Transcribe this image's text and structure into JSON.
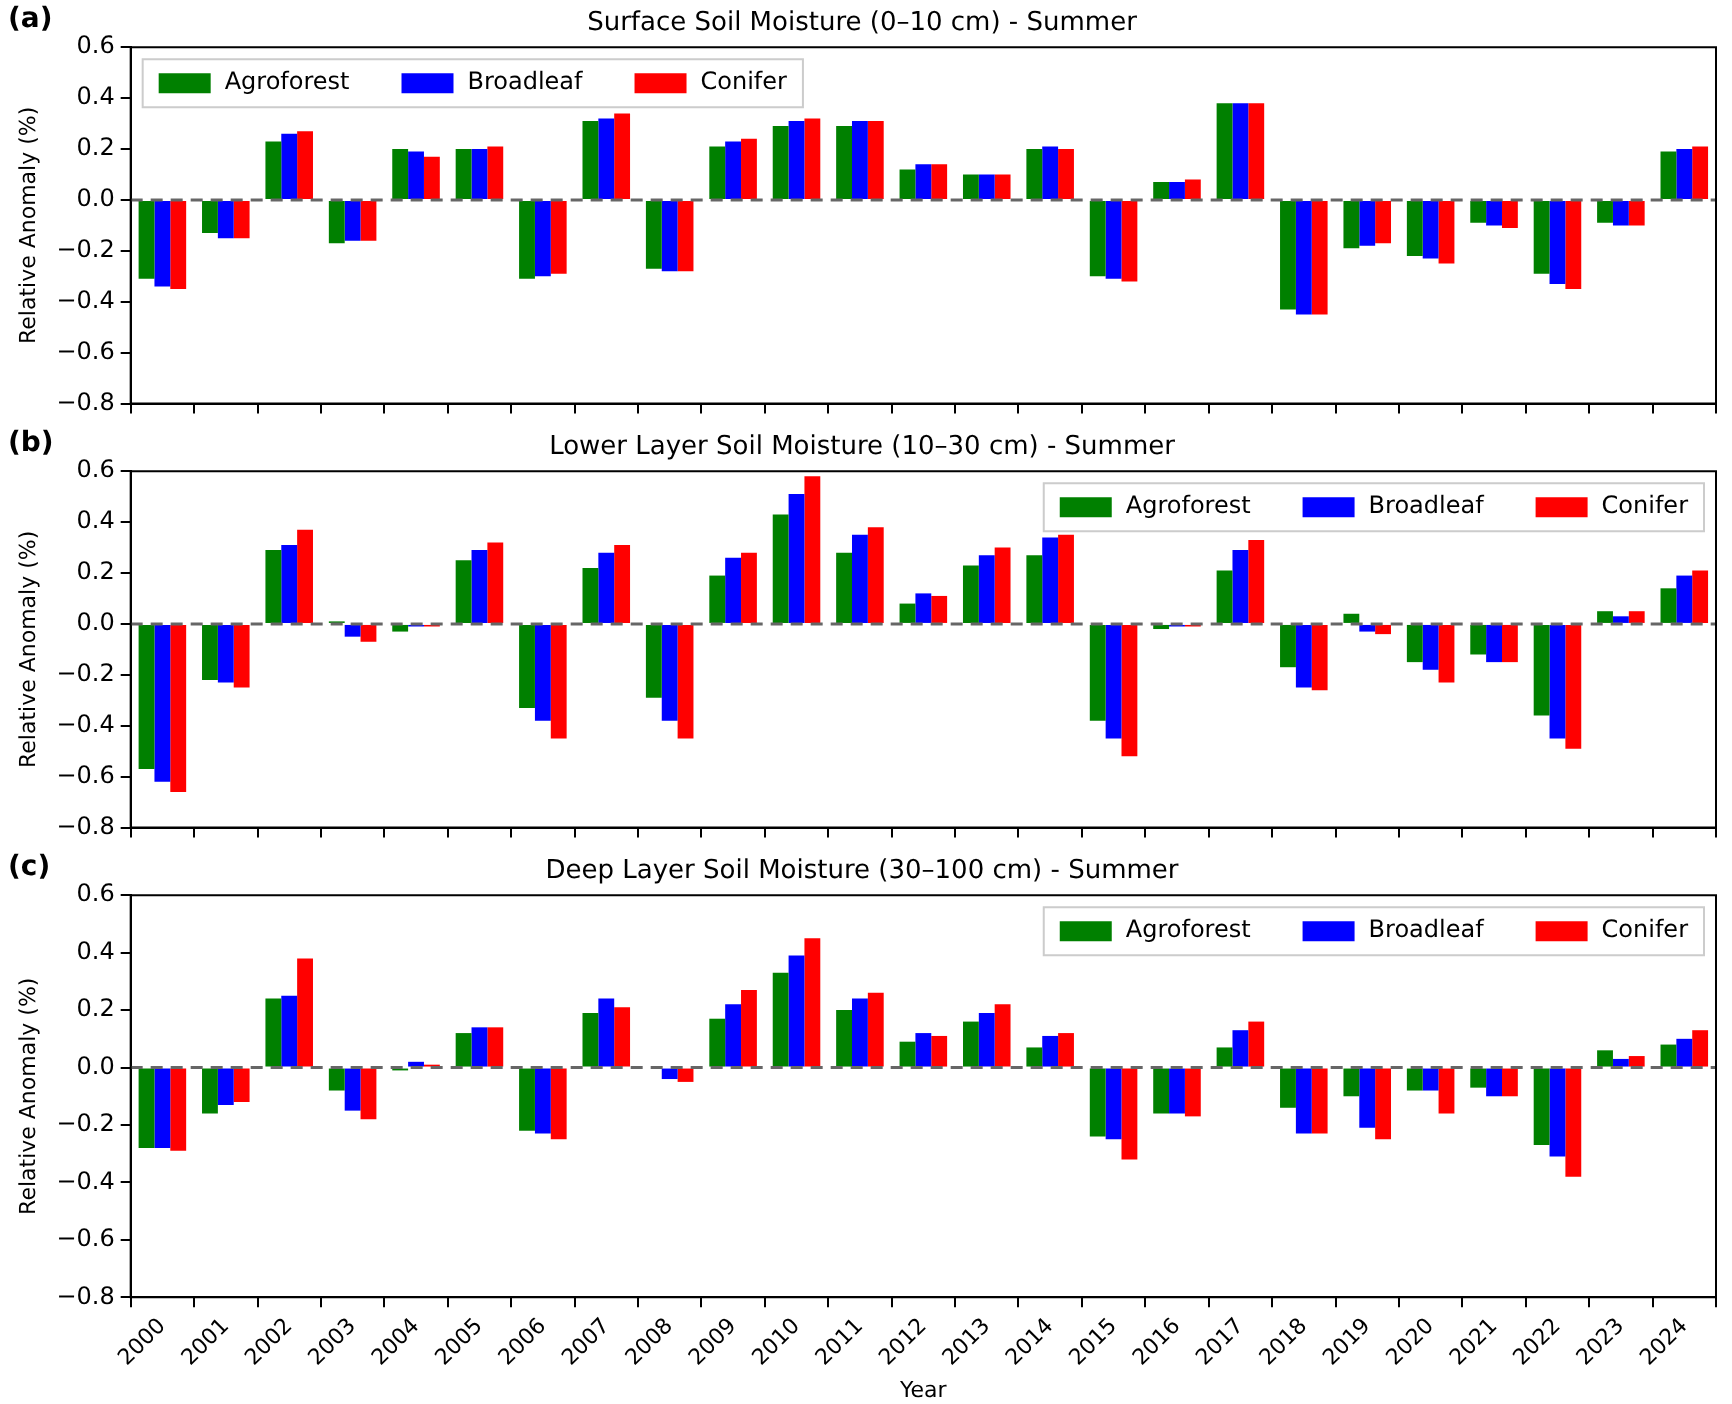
{
  "chart_data": [
    {
      "type": "bar",
      "title": "Surface Soil Moisture (0–10 cm) - Summer",
      "ylabel": "Relative Anomaly (%)",
      "annotations": [
        "(a)"
      ],
      "categories": [
        "2000",
        "2001",
        "2002",
        "2003",
        "2004",
        "2005",
        "2006",
        "2007",
        "2008",
        "2009",
        "2010",
        "2011",
        "2012",
        "2013",
        "2014",
        "2015",
        "2016",
        "2017",
        "2018",
        "2019",
        "2020",
        "2021",
        "2022",
        "2023",
        "2024"
      ],
      "series": [
        {
          "name": "Agroforest",
          "color": "#008000",
          "values": [
            -0.31,
            -0.13,
            0.23,
            -0.17,
            0.2,
            0.2,
            -0.31,
            0.31,
            -0.27,
            0.21,
            0.29,
            0.29,
            0.12,
            0.1,
            0.2,
            -0.3,
            0.07,
            0.38,
            -0.43,
            -0.19,
            -0.22,
            -0.09,
            -0.29,
            -0.09,
            0.19
          ]
        },
        {
          "name": "Broadleaf",
          "color": "#0000ff",
          "values": [
            -0.34,
            -0.15,
            0.26,
            -0.16,
            0.19,
            0.2,
            -0.3,
            0.32,
            -0.28,
            0.23,
            0.31,
            0.31,
            0.14,
            0.1,
            0.21,
            -0.31,
            0.07,
            0.38,
            -0.45,
            -0.18,
            -0.23,
            -0.1,
            -0.33,
            -0.1,
            0.2
          ]
        },
        {
          "name": "Conifer",
          "color": "#ff0000",
          "values": [
            -0.35,
            -0.15,
            0.27,
            -0.16,
            0.17,
            0.21,
            -0.29,
            0.34,
            -0.28,
            0.24,
            0.32,
            0.31,
            0.14,
            0.1,
            0.2,
            -0.32,
            0.08,
            0.38,
            -0.45,
            -0.17,
            -0.25,
            -0.11,
            -0.35,
            -0.1,
            0.21
          ]
        }
      ],
      "ylim": [
        -0.8,
        0.6
      ],
      "yticks": [
        {
          "value": -0.8,
          "label": "−0.8"
        },
        {
          "value": -0.6,
          "label": "−0.6"
        },
        {
          "value": -0.4,
          "label": "−0.4"
        },
        {
          "value": -0.2,
          "label": "−0.2"
        },
        {
          "value": 0,
          "label": "0.0"
        },
        {
          "value": 0.2,
          "label": "0.2"
        },
        {
          "value": 0.4,
          "label": "0.4"
        },
        {
          "value": 0.6,
          "label": "0.6"
        }
      ],
      "ref_lines": [
        {
          "axis": "y",
          "value": 0,
          "color": "#666666",
          "line_style": "dashed"
        }
      ],
      "legend": "top left",
      "grid": false,
      "tick_labels": "y"
    },
    {
      "type": "bar",
      "title": "Lower Layer Soil Moisture (10–30 cm) - Summer",
      "ylabel": "Relative Anomaly (%)",
      "annotations": [
        "(b)"
      ],
      "categories": [
        "2000",
        "2001",
        "2002",
        "2003",
        "2004",
        "2005",
        "2006",
        "2007",
        "2008",
        "2009",
        "2010",
        "2011",
        "2012",
        "2013",
        "2014",
        "2015",
        "2016",
        "2017",
        "2018",
        "2019",
        "2020",
        "2021",
        "2022",
        "2023",
        "2024"
      ],
      "series": [
        {
          "name": "Agroforest",
          "color": "#008000",
          "values": [
            -0.57,
            -0.22,
            0.29,
            0.01,
            -0.03,
            0.25,
            -0.33,
            0.22,
            -0.29,
            0.19,
            0.43,
            0.28,
            0.08,
            0.23,
            0.27,
            -0.38,
            -0.02,
            0.21,
            -0.17,
            0.04,
            -0.15,
            -0.12,
            -0.36,
            0.05,
            0.14
          ]
        },
        {
          "name": "Broadleaf",
          "color": "#0000ff",
          "values": [
            -0.62,
            -0.23,
            0.31,
            -0.05,
            -0.01,
            0.29,
            -0.38,
            0.28,
            -0.38,
            0.26,
            0.51,
            0.35,
            0.12,
            0.27,
            0.34,
            -0.45,
            -0.01,
            0.29,
            -0.25,
            -0.03,
            -0.18,
            -0.15,
            -0.45,
            0.03,
            0.19
          ]
        },
        {
          "name": "Conifer",
          "color": "#ff0000",
          "values": [
            -0.66,
            -0.25,
            0.37,
            -0.07,
            -0.01,
            0.32,
            -0.45,
            0.31,
            -0.45,
            0.28,
            0.58,
            0.38,
            0.11,
            0.3,
            0.35,
            -0.52,
            -0.01,
            0.33,
            -0.26,
            -0.04,
            -0.23,
            -0.15,
            -0.49,
            0.05,
            0.21
          ]
        }
      ],
      "ylim": [
        -0.8,
        0.6
      ],
      "yticks": [
        {
          "value": -0.8,
          "label": "−0.8"
        },
        {
          "value": -0.6,
          "label": "−0.6"
        },
        {
          "value": -0.4,
          "label": "−0.4"
        },
        {
          "value": -0.2,
          "label": "−0.2"
        },
        {
          "value": 0,
          "label": "0.0"
        },
        {
          "value": 0.2,
          "label": "0.2"
        },
        {
          "value": 0.4,
          "label": "0.4"
        },
        {
          "value": 0.6,
          "label": "0.6"
        }
      ],
      "ref_lines": [
        {
          "axis": "y",
          "value": 0,
          "color": "#666666",
          "line_style": "dashed"
        }
      ],
      "legend": "top right",
      "grid": false,
      "tick_labels": "y"
    },
    {
      "type": "bar",
      "title": "Deep Layer Soil Moisture (30–100 cm) - Summer",
      "xlabel": "Year",
      "ylabel": "Relative Anomaly (%)",
      "annotations": [
        "(c)"
      ],
      "categories": [
        "2000",
        "2001",
        "2002",
        "2003",
        "2004",
        "2005",
        "2006",
        "2007",
        "2008",
        "2009",
        "2010",
        "2011",
        "2012",
        "2013",
        "2014",
        "2015",
        "2016",
        "2017",
        "2018",
        "2019",
        "2020",
        "2021",
        "2022",
        "2023",
        "2024"
      ],
      "series": [
        {
          "name": "Agroforest",
          "color": "#008000",
          "values": [
            -0.28,
            -0.16,
            0.24,
            -0.08,
            -0.01,
            0.12,
            -0.22,
            0.19,
            0.0,
            0.17,
            0.33,
            0.2,
            0.09,
            0.16,
            0.07,
            -0.24,
            -0.16,
            0.07,
            -0.14,
            -0.1,
            -0.08,
            -0.07,
            -0.27,
            0.06,
            0.08
          ]
        },
        {
          "name": "Broadleaf",
          "color": "#0000ff",
          "values": [
            -0.28,
            -0.13,
            0.25,
            -0.15,
            0.02,
            0.14,
            -0.23,
            0.24,
            -0.04,
            0.22,
            0.39,
            0.24,
            0.12,
            0.19,
            0.11,
            -0.25,
            -0.16,
            0.13,
            -0.23,
            -0.21,
            -0.08,
            -0.1,
            -0.31,
            0.03,
            0.1
          ]
        },
        {
          "name": "Conifer",
          "color": "#ff0000",
          "values": [
            -0.29,
            -0.12,
            0.38,
            -0.18,
            0.01,
            0.14,
            -0.25,
            0.21,
            -0.05,
            0.27,
            0.45,
            0.26,
            0.11,
            0.22,
            0.12,
            -0.32,
            -0.17,
            0.16,
            -0.23,
            -0.25,
            -0.16,
            -0.1,
            -0.38,
            0.04,
            0.13
          ]
        }
      ],
      "ylim": [
        -0.8,
        0.6
      ],
      "yticks": [
        {
          "value": -0.8,
          "label": "−0.8"
        },
        {
          "value": -0.6,
          "label": "−0.6"
        },
        {
          "value": -0.4,
          "label": "−0.4"
        },
        {
          "value": -0.2,
          "label": "−0.2"
        },
        {
          "value": 0,
          "label": "0.0"
        },
        {
          "value": 0.2,
          "label": "0.2"
        },
        {
          "value": 0.4,
          "label": "0.4"
        },
        {
          "value": 0.6,
          "label": "0.6"
        }
      ],
      "ref_lines": [
        {
          "axis": "y",
          "value": 0,
          "color": "#666666",
          "line_style": "dashed"
        }
      ],
      "legend": "top right",
      "grid": false
    }
  ]
}
